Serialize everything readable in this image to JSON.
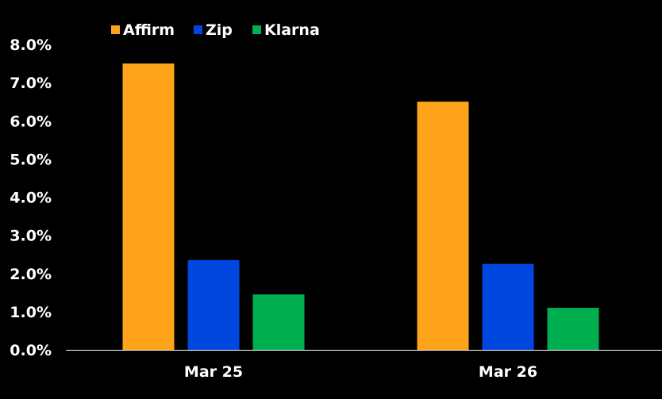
{
  "chart_data": {
    "type": "bar",
    "categories": [
      "Mar 25",
      "Mar 26"
    ],
    "series": [
      {
        "name": "Affirm",
        "values": [
          7.5,
          6.5
        ],
        "color": "#FFA31A"
      },
      {
        "name": "Zip",
        "values": [
          2.35,
          2.25
        ],
        "color": "#0047E0"
      },
      {
        "name": "Klarna",
        "values": [
          1.45,
          1.1
        ],
        "color": "#00B050"
      }
    ],
    "yticks": [
      "0.0%",
      "1.0%",
      "2.0%",
      "3.0%",
      "4.0%",
      "5.0%",
      "6.0%",
      "7.0%",
      "8.0%"
    ],
    "ylim": [
      0,
      8
    ],
    "title": "",
    "xlabel": "",
    "ylabel": "",
    "legend_position": "top-left",
    "grid": false,
    "background": "#000000",
    "axis_color": "#FFFFFF"
  }
}
